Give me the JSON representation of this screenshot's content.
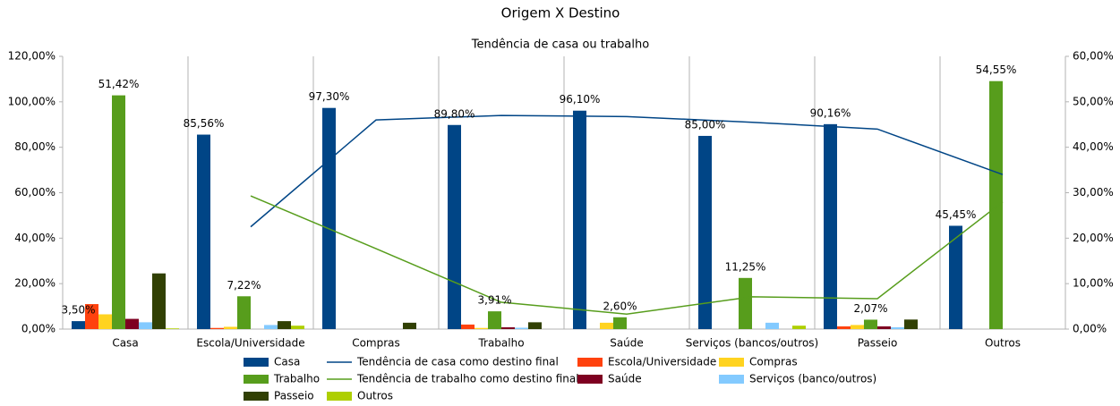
{
  "chart_data": {
    "type": "bar",
    "title": "Origem X Destino",
    "subtitle": "Tendência de casa ou trabalho",
    "categories": [
      "Casa",
      "Escola/Universidade",
      "Compras",
      "Trabalho",
      "Saúde",
      "Serviços (bancos/outros)",
      "Passeio",
      "Outros"
    ],
    "series": [
      {
        "name": "Casa",
        "type": "bar",
        "color": "#004586",
        "values": [
          3.5,
          85.56,
          97.3,
          89.8,
          96.1,
          85.0,
          90.16,
          45.45
        ],
        "value_labels": [
          "3,50%",
          "85,56%",
          "97,30%",
          "89,80%",
          "96,10%",
          "85,00%",
          "90,16%",
          "45,45%"
        ]
      },
      {
        "name": "Tendência de casa como destino final",
        "type": "line",
        "color": "#004586",
        "values": [
          null,
          45,
          92,
          94,
          93.5,
          91,
          88,
          68
        ]
      },
      {
        "name": "Escola/Universidade",
        "type": "bar",
        "color": "#ff420e",
        "values": [
          11,
          0.5,
          0,
          2,
          0,
          0,
          1.2,
          0
        ]
      },
      {
        "name": "Compras",
        "type": "bar",
        "color": "#ffd320",
        "values": [
          6.5,
          1,
          0,
          0.5,
          2.8,
          0,
          1.8,
          0
        ]
      },
      {
        "name": "Trabalho",
        "type": "bar",
        "axis": "y2",
        "color": "#579d1c",
        "values": [
          51.42,
          7.22,
          0,
          3.91,
          2.6,
          11.25,
          2.07,
          54.55
        ],
        "value_labels": [
          "51,42%",
          "7,22%",
          null,
          "3,91%",
          "2,60%",
          "11,25%",
          "2,07%",
          "54,55%"
        ]
      },
      {
        "name": "Tendência de trabalho como destino final",
        "type": "line",
        "axis": "y2",
        "color": "#579d1c",
        "values": [
          null,
          29.3,
          17.7,
          5.9,
          3.3,
          7.1,
          6.7,
          28.0
        ]
      },
      {
        "name": "Saúde",
        "type": "bar",
        "color": "#7e0021",
        "values": [
          4.5,
          0,
          0,
          0.8,
          0,
          0,
          1.2,
          0
        ]
      },
      {
        "name": "Serviços (banco/outros)",
        "type": "bar",
        "color": "#83caff",
        "values": [
          3,
          1.8,
          0,
          0.6,
          0,
          2.8,
          0.8,
          0
        ]
      },
      {
        "name": "Passeio",
        "type": "bar",
        "color": "#314004",
        "values": [
          24.5,
          3.5,
          2.8,
          3,
          0,
          0,
          4.2,
          0
        ]
      },
      {
        "name": "Outros",
        "type": "bar",
        "color": "#aecf00",
        "values": [
          0.3,
          1.5,
          0,
          0,
          0,
          1.5,
          0,
          0
        ]
      }
    ],
    "ylim": [
      0,
      120
    ],
    "yticks": [
      {
        "value": 0,
        "label": "0,00%"
      },
      {
        "value": 20,
        "label": "20,00%"
      },
      {
        "value": 40,
        "label": "40,00%"
      },
      {
        "value": 60,
        "label": "60,00%"
      },
      {
        "value": 80,
        "label": "80,00%"
      },
      {
        "value": 100,
        "label": "100,00%"
      },
      {
        "value": 120,
        "label": "120,00%"
      }
    ],
    "y2lim": [
      0,
      60
    ],
    "y2ticks": [
      {
        "value": 0,
        "label": "0,00%"
      },
      {
        "value": 10,
        "label": "10,00%"
      },
      {
        "value": 20,
        "label": "20,00%"
      },
      {
        "value": 30,
        "label": "30,00%"
      },
      {
        "value": 40,
        "label": "40,00%"
      },
      {
        "value": 50,
        "label": "50,00%"
      },
      {
        "value": 60,
        "label": "60,00%"
      }
    ],
    "grid": "x",
    "legend": "bottom"
  }
}
